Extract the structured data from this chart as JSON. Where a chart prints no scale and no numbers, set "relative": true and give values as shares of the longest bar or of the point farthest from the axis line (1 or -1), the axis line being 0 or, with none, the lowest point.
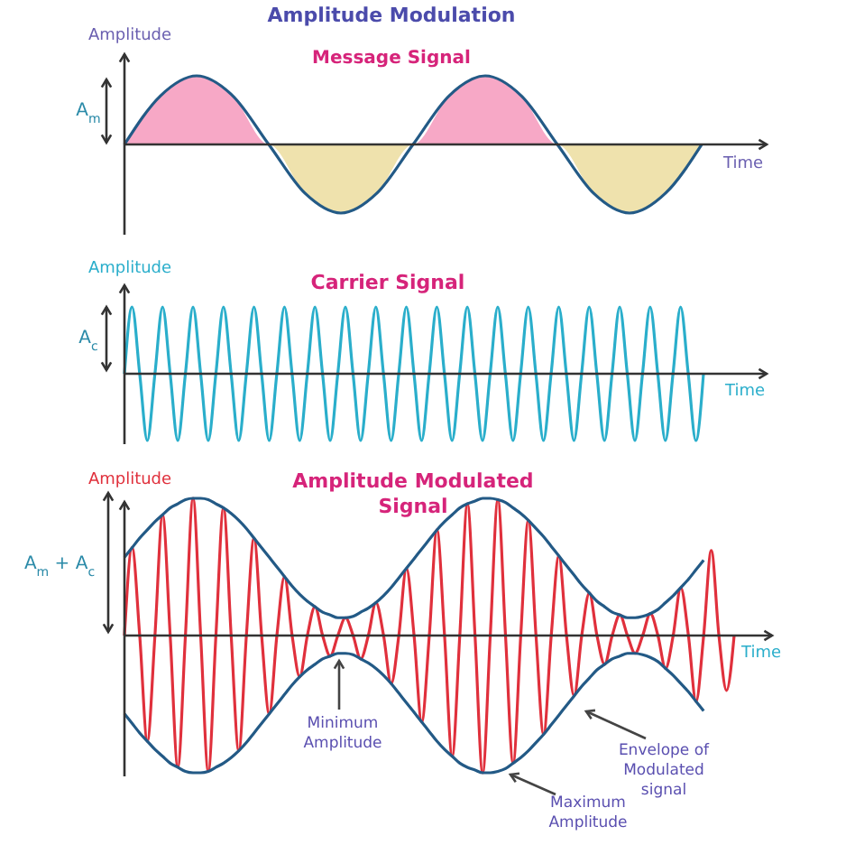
{
  "chart_data": [
    {
      "type": "line",
      "title": "Amplitude Modulation",
      "subtitle": "Message Signal",
      "xlabel": "Time",
      "ylabel": "Amplitude",
      "relative": true,
      "annotations": [
        "A$_{m}$"
      ],
      "categories": [
        null,
        null,
        null,
        null,
        null,
        null,
        null,
        null,
        null,
        null,
        null,
        null,
        null,
        null,
        null,
        null,
        null
      ],
      "series": [
        {
          "type": "area",
          "color": "#f7a8c6",
          "values": [
            0,
            0.71,
            1,
            0.71,
            0,
            0,
            0,
            0,
            0,
            0.71,
            1,
            0.71,
            0,
            0,
            0,
            0,
            0
          ]
        },
        {
          "type": "area",
          "color": "#efe2ad",
          "values": [
            0,
            0,
            0,
            0,
            0,
            -0.71,
            -1,
            -0.71,
            0,
            0,
            0,
            0,
            0,
            -0.71,
            -1,
            -0.71,
            0
          ]
        },
        {
          "type": "line",
          "color": "#235a86",
          "values": [
            0,
            0.71,
            1,
            0.71,
            0,
            -0.71,
            -1,
            -0.71,
            0,
            0.71,
            1,
            0.71,
            0,
            -0.71,
            -1,
            -0.71,
            0
          ]
        }
      ]
    },
    {
      "type": "line",
      "title": "Carrier Signal",
      "xlabel": "Time",
      "ylabel": "Amplitude",
      "relative": true,
      "annotations": [
        "A$_{c}$"
      ],
      "categories": [
        null,
        null,
        null,
        null,
        null,
        null,
        null,
        null,
        null,
        null,
        null,
        null,
        null,
        null,
        null,
        null,
        null,
        null,
        null,
        null,
        null,
        null,
        null,
        null,
        null,
        null,
        null,
        null,
        null,
        null,
        null,
        null,
        null,
        null,
        null,
        null,
        null,
        null,
        null,
        null,
        null,
        null,
        null,
        null,
        null,
        null,
        null,
        null,
        null,
        null,
        null,
        null,
        null,
        null,
        null,
        null,
        null,
        null,
        null,
        null,
        null,
        null,
        null,
        null,
        null,
        null,
        null,
        null,
        null,
        null,
        null,
        null,
        null,
        null,
        null,
        null,
        null
      ],
      "series": [
        {
          "color": "#2aaecb",
          "values": [
            0,
            1,
            0,
            -1,
            0,
            1,
            0,
            -1,
            0,
            1,
            0,
            -1,
            0,
            1,
            0,
            -1,
            0,
            1,
            0,
            -1,
            0,
            1,
            0,
            -1,
            0,
            1,
            0,
            -1,
            0,
            1,
            0,
            -1,
            0,
            1,
            0,
            -1,
            0,
            1,
            0,
            -1,
            0,
            1,
            0,
            -1,
            0,
            1,
            0,
            -1,
            0,
            1,
            0,
            -1,
            0,
            1,
            0,
            -1,
            0,
            1,
            0,
            -1,
            0,
            1,
            0,
            -1,
            0,
            1,
            0,
            -1,
            0,
            1,
            0,
            -1,
            0,
            1,
            0,
            -1,
            0
          ]
        }
      ]
    },
    {
      "type": "line",
      "title": "Amplitude Modulated Signal",
      "xlabel": "Time",
      "ylabel": "Amplitude",
      "relative": true,
      "annotations": [
        "A$_{m}$ + A$_{c}$",
        "Minimum Amplitude",
        "Envelope of Modulated signal",
        "Maximum Amplitude"
      ],
      "categories": [
        null,
        null,
        null,
        null,
        null,
        null,
        null,
        null,
        null,
        null,
        null,
        null,
        null,
        null,
        null,
        null,
        null,
        null,
        null,
        null,
        null,
        null,
        null,
        null,
        null,
        null,
        null,
        null,
        null,
        null,
        null,
        null,
        null,
        null,
        null,
        null,
        null,
        null,
        null,
        null,
        null,
        null,
        null,
        null,
        null,
        null,
        null,
        null,
        null,
        null,
        null,
        null,
        null,
        null,
        null,
        null,
        null,
        null,
        null,
        null,
        null,
        null,
        null,
        null,
        null,
        null,
        null,
        null,
        null,
        null,
        null,
        null,
        null,
        null,
        null,
        null,
        null,
        null,
        null,
        null,
        null
      ],
      "series": [
        {
          "color": "#e0303c",
          "values": [
            0,
            0.64,
            0,
            -0.77,
            0,
            0.88,
            0,
            -0.96,
            0,
            1.0,
            0,
            -0.99,
            0,
            0.93,
            0,
            -0.84,
            0,
            0.71,
            0,
            -0.57,
            0,
            0.43,
            0,
            -0.3,
            0,
            0.21,
            0,
            -0.15,
            0,
            0.13,
            0,
            -0.17,
            0,
            0.24,
            0,
            -0.35,
            0,
            0.49,
            0,
            -0.63,
            0,
            0.77,
            0,
            -0.88,
            0,
            0.96,
            0,
            -1.0,
            0,
            0.99,
            0,
            -0.93,
            0,
            0.84,
            0,
            -0.72,
            0,
            0.58,
            0,
            -0.44,
            0,
            0.31,
            0,
            -0.21,
            0,
            0.15,
            0,
            -0.13,
            0,
            0.16,
            0,
            -0.24,
            0,
            0.35,
            0,
            -0.48,
            0,
            0.62,
            0,
            -0.4,
            0
          ]
        },
        {
          "color": "#235a86",
          "values": [
            0.57,
            0.64,
            0.71,
            0.77,
            0.83,
            0.88,
            0.93,
            0.96,
            0.99,
            1.0,
            1.0,
            0.99,
            0.96,
            0.93,
            0.89,
            0.84,
            0.78,
            0.71,
            0.64,
            0.57,
            0.5,
            0.43,
            0.36,
            0.3,
            0.25,
            0.21,
            0.17,
            0.15,
            0.13,
            0.13,
            0.14,
            0.17,
            0.2,
            0.24,
            0.29,
            0.35,
            0.42,
            0.49,
            0.56,
            0.63,
            0.7,
            0.77,
            0.83,
            0.88,
            0.93,
            0.96,
            0.98,
            1.0,
            1.0,
            0.99,
            0.97,
            0.93,
            0.89,
            0.84,
            0.78,
            0.72,
            0.65,
            0.58,
            0.51,
            0.44,
            0.37,
            0.31,
            0.25,
            0.21,
            0.17,
            0.15,
            0.13,
            0.13,
            0.14,
            0.16,
            0.19,
            0.24,
            0.29,
            0.35,
            0.41,
            0.48,
            0.55,
            null,
            null,
            null,
            null
          ]
        },
        {
          "color": "#235a86",
          "values": [
            -0.57,
            -0.64,
            -0.71,
            -0.77,
            -0.83,
            -0.88,
            -0.93,
            -0.96,
            -0.99,
            -1.0,
            -1.0,
            -0.99,
            -0.96,
            -0.93,
            -0.89,
            -0.84,
            -0.78,
            -0.71,
            -0.64,
            -0.57,
            -0.5,
            -0.43,
            -0.36,
            -0.3,
            -0.25,
            -0.21,
            -0.17,
            -0.15,
            -0.13,
            -0.13,
            -0.14,
            -0.17,
            -0.2,
            -0.24,
            -0.29,
            -0.35,
            -0.42,
            -0.49,
            -0.56,
            -0.63,
            -0.7,
            -0.77,
            -0.83,
            -0.88,
            -0.93,
            -0.96,
            -0.98,
            -1.0,
            -1.0,
            -0.99,
            -0.97,
            -0.93,
            -0.89,
            -0.84,
            -0.78,
            -0.72,
            -0.65,
            -0.58,
            -0.51,
            -0.44,
            -0.37,
            -0.31,
            -0.25,
            -0.21,
            -0.17,
            -0.15,
            -0.13,
            -0.13,
            -0.14,
            -0.16,
            -0.19,
            -0.24,
            -0.29,
            -0.35,
            -0.41,
            -0.48,
            -0.55,
            null,
            null,
            null,
            null
          ]
        }
      ]
    }
  ]
}
